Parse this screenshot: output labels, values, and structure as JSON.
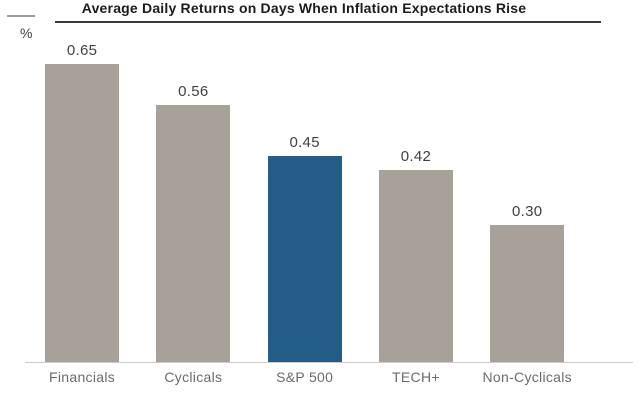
{
  "chart_data": {
    "type": "bar",
    "title": "Average Daily Returns on Days When Inflation Expectations Rise",
    "unit_label": "%",
    "categories": [
      "Financials",
      "Cyclicals",
      "S&P 500",
      "TECH+",
      "Non-Cyclicals"
    ],
    "values": [
      0.65,
      0.56,
      0.45,
      0.42,
      0.3
    ],
    "value_labels": [
      "0.65",
      "0.56",
      "0.45",
      "0.42",
      "0.30"
    ],
    "highlighted_category": "S&P 500",
    "highlight_index": 2,
    "bar_color": "#a8a19a",
    "highlight_color": "#245c88",
    "ylabel": "",
    "xlabel": "",
    "ylim": [
      0,
      0.7
    ],
    "grid": false,
    "legend": false
  }
}
